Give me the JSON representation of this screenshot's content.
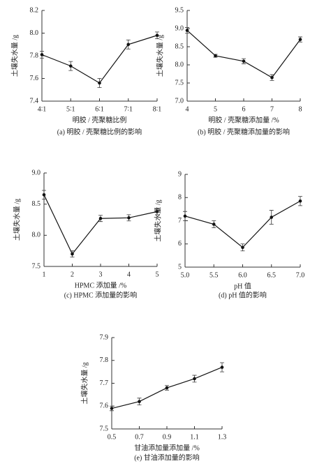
{
  "chart_data": [
    {
      "type": "line",
      "color": "#111",
      "ylabel": "土壤失水量 /g",
      "xlabel": "明胶 / 壳聚糖比例",
      "caption": "(a) 明胶 / 壳聚糖比例的影响",
      "categories": [
        "4∶1",
        "5∶1",
        "6∶1",
        "7∶1",
        "8∶1"
      ],
      "values": [
        7.81,
        7.71,
        7.56,
        7.9,
        7.98
      ],
      "errors": [
        0.03,
        0.04,
        0.04,
        0.04,
        0.03
      ],
      "ylim": [
        7.4,
        8.2
      ],
      "yticks": [
        7.4,
        7.6,
        7.8,
        {
          "value": 8,
          "label": "8.0"
        },
        8.2
      ]
    },
    {
      "type": "line",
      "color": "#111",
      "ylabel": "土壤失水量 /g",
      "xlabel": "明胶 / 壳聚糖添加量 /%",
      "caption": "(b) 明胶 / 壳聚糖添加量的影响",
      "x": [
        4,
        5,
        6,
        7,
        8
      ],
      "values": [
        8.95,
        8.25,
        8.1,
        7.65,
        8.7
      ],
      "errors": [
        0.08,
        0.04,
        0.07,
        0.08,
        0.07
      ],
      "xlim": [
        4,
        8
      ],
      "xticks": [
        4,
        5,
        6,
        7,
        8
      ],
      "ylim": [
        7,
        9.5
      ],
      "yticks": [
        {
          "value": 7,
          "label": "7.0"
        },
        7.5,
        {
          "value": 8,
          "label": "8.0"
        },
        8.5,
        {
          "value": 9,
          "label": "9.0"
        },
        9.5
      ]
    },
    {
      "type": "line",
      "color": "#111",
      "ylabel": "土壤失水量 /g",
      "xlabel": "HPMC 添加量 /%",
      "caption": "(c) HPMC 添加量的影响",
      "x": [
        1,
        2,
        3,
        4,
        5
      ],
      "values": [
        8.65,
        7.7,
        8.27,
        8.28,
        8.38
      ],
      "errors": [
        0.07,
        0.05,
        0.05,
        0.05,
        0.05
      ],
      "xlim": [
        1,
        5
      ],
      "xticks": [
        1,
        2,
        3,
        4,
        5
      ],
      "ylim": [
        7.5,
        9
      ],
      "yticks": [
        7.5,
        {
          "value": 8,
          "label": "8.0"
        },
        8.5,
        {
          "value": 9,
          "label": "9.0"
        }
      ]
    },
    {
      "type": "line",
      "color": "#111",
      "ylabel": "土壤失水量 /g",
      "xlabel": "pH 值",
      "caption": "(d) pH 值的影响",
      "x": [
        5,
        5.5,
        6,
        6.5,
        7
      ],
      "values": [
        7.2,
        6.85,
        5.85,
        7.15,
        7.85
      ],
      "errors": [
        0.2,
        0.15,
        0.15,
        0.3,
        0.2
      ],
      "xlim": [
        5,
        7
      ],
      "xticks": [
        {
          "value": 5,
          "label": "5.0"
        },
        5.5,
        {
          "value": 6,
          "label": "6.0"
        },
        6.5,
        {
          "value": 7,
          "label": "7.0"
        }
      ],
      "ylim": [
        5,
        9
      ],
      "yticks": [
        5,
        6,
        7,
        8,
        9
      ]
    },
    {
      "type": "line",
      "color": "#111",
      "ylabel": "土壤失水量 /g",
      "xlabel": "甘油添加量添加量 /%",
      "caption": "(e) 甘油添加量的影响",
      "x": [
        0.5,
        0.7,
        0.9,
        1.1,
        1.3
      ],
      "values": [
        7.59,
        7.62,
        7.68,
        7.72,
        7.77
      ],
      "errors": [
        0.01,
        0.015,
        0.01,
        0.015,
        0.02
      ],
      "xlim": [
        0.5,
        1.3
      ],
      "xticks": [
        0.5,
        0.7,
        0.9,
        1.1,
        1.3
      ],
      "ylim": [
        7.5,
        7.9
      ],
      "yticks": [
        7.5,
        7.6,
        7.7,
        7.8,
        7.9
      ]
    }
  ]
}
